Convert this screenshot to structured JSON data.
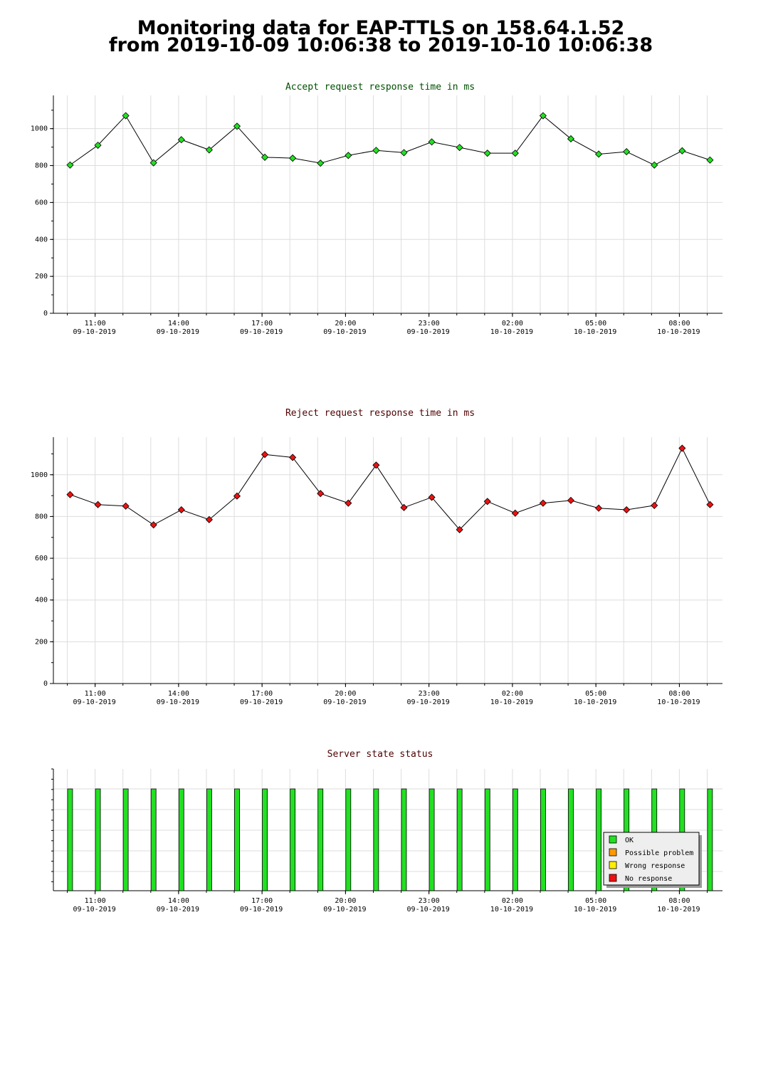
{
  "page": {
    "title_line1": "Monitoring data for EAP-TTLS on 158.64.1.52",
    "title_line2": "from 2019-10-09 10:06:38 to 2019-10-10 10:06:38"
  },
  "colors": {
    "accept_title": "#005000",
    "reject_title": "#500000",
    "status_title": "#500000",
    "accept_marker": "#22e022",
    "reject_marker": "#ee1111",
    "ok": "#22e022",
    "possible_problem": "#ff9900",
    "wrong_response": "#ffee00",
    "no_response": "#ee1111",
    "grid": "#dddddd"
  },
  "chart_data": [
    {
      "type": "line",
      "title": "Accept request response time in ms",
      "ylim": [
        0,
        1180
      ],
      "yticks": [
        0,
        200,
        400,
        600,
        800,
        1000
      ],
      "xticks": [
        {
          "time": "11:00",
          "date": "09-10-2019"
        },
        {
          "time": "14:00",
          "date": "09-10-2019"
        },
        {
          "time": "17:00",
          "date": "09-10-2019"
        },
        {
          "time": "20:00",
          "date": "09-10-2019"
        },
        {
          "time": "23:00",
          "date": "09-10-2019"
        },
        {
          "time": "02:00",
          "date": "10-10-2019"
        },
        {
          "time": "05:00",
          "date": "10-10-2019"
        },
        {
          "time": "08:00",
          "date": "10-10-2019"
        }
      ],
      "grid": true,
      "x_hours": [
        10.1,
        11.1,
        12.1,
        13.1,
        14.1,
        15.1,
        16.1,
        17.1,
        18.1,
        19.1,
        20.1,
        21.1,
        22.1,
        23.1,
        24.1,
        25.1,
        26.1,
        27.1,
        28.1,
        29.1,
        30.1,
        31.1,
        32.1,
        33.1
      ],
      "values": [
        803,
        910,
        1070,
        815,
        940,
        885,
        1013,
        845,
        840,
        813,
        855,
        882,
        870,
        928,
        898,
        867,
        867,
        1070,
        945,
        862,
        875,
        803,
        880,
        830
      ]
    },
    {
      "type": "line",
      "title": "Reject request response time in ms",
      "ylim": [
        0,
        1180
      ],
      "yticks": [
        0,
        200,
        400,
        600,
        800,
        1000
      ],
      "xticks": [
        {
          "time": "11:00",
          "date": "09-10-2019"
        },
        {
          "time": "14:00",
          "date": "09-10-2019"
        },
        {
          "time": "17:00",
          "date": "09-10-2019"
        },
        {
          "time": "20:00",
          "date": "09-10-2019"
        },
        {
          "time": "23:00",
          "date": "09-10-2019"
        },
        {
          "time": "02:00",
          "date": "10-10-2019"
        },
        {
          "time": "05:00",
          "date": "10-10-2019"
        },
        {
          "time": "08:00",
          "date": "10-10-2019"
        }
      ],
      "grid": true,
      "x_hours": [
        10.1,
        11.1,
        12.1,
        13.1,
        14.1,
        15.1,
        16.1,
        17.1,
        18.1,
        19.1,
        20.1,
        21.1,
        22.1,
        23.1,
        24.1,
        25.1,
        26.1,
        27.1,
        28.1,
        29.1,
        30.1,
        31.1,
        32.1,
        33.1
      ],
      "values": [
        905,
        857,
        850,
        760,
        832,
        785,
        898,
        1097,
        1083,
        910,
        864,
        1046,
        843,
        892,
        737,
        872,
        816,
        864,
        877,
        840,
        832,
        853,
        1127,
        857
      ]
    },
    {
      "type": "bar",
      "title": "Server state status",
      "xticks": [
        {
          "time": "11:00",
          "date": "09-10-2019"
        },
        {
          "time": "14:00",
          "date": "09-10-2019"
        },
        {
          "time": "17:00",
          "date": "09-10-2019"
        },
        {
          "time": "20:00",
          "date": "09-10-2019"
        },
        {
          "time": "23:00",
          "date": "09-10-2019"
        },
        {
          "time": "02:00",
          "date": "10-10-2019"
        },
        {
          "time": "05:00",
          "date": "10-10-2019"
        },
        {
          "time": "08:00",
          "date": "10-10-2019"
        }
      ],
      "x_hours": [
        10.1,
        11.1,
        12.1,
        13.1,
        14.1,
        15.1,
        16.1,
        17.1,
        18.1,
        19.1,
        20.1,
        21.1,
        22.1,
        23.1,
        24.1,
        25.1,
        26.1,
        27.1,
        28.1,
        29.1,
        30.1,
        31.1,
        32.1,
        33.1
      ],
      "states": [
        "OK",
        "OK",
        "OK",
        "OK",
        "OK",
        "OK",
        "OK",
        "OK",
        "OK",
        "OK",
        "OK",
        "OK",
        "OK",
        "OK",
        "OK",
        "OK",
        "OK",
        "OK",
        "OK",
        "OK",
        "OK",
        "OK",
        "OK",
        "OK"
      ],
      "legend_placement": "bottom-right",
      "legend": [
        {
          "label": "OK",
          "color_key": "ok"
        },
        {
          "label": "Possible problem",
          "color_key": "possible_problem"
        },
        {
          "label": "Wrong response",
          "color_key": "wrong_response"
        },
        {
          "label": "No response",
          "color_key": "no_response"
        }
      ]
    }
  ]
}
